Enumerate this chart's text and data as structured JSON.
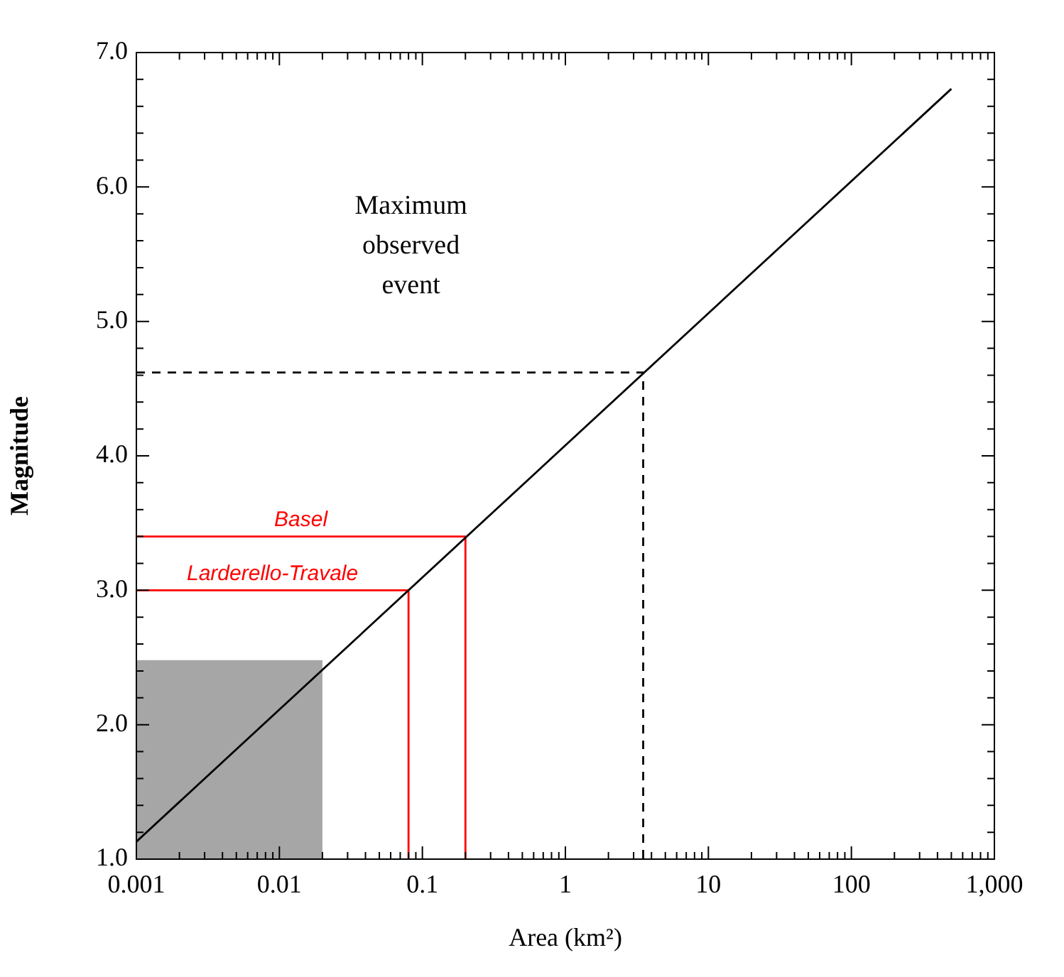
{
  "chart_data": {
    "type": "line",
    "xlabel": "Area (km²)",
    "ylabel": "Magnitude",
    "log": "x",
    "grid": false,
    "legend": false,
    "xlim": [
      0.001,
      1000
    ],
    "ylim": [
      1,
      7
    ],
    "xticks": [
      0.001,
      {
        "value": 0.002,
        "label": null
      },
      {
        "value": 0.003,
        "label": null
      },
      {
        "value": 0.004,
        "label": null
      },
      {
        "value": 0.005,
        "label": null
      },
      {
        "value": 0.006,
        "label": null
      },
      {
        "value": 0.007,
        "label": null
      },
      {
        "value": 0.008,
        "label": null
      },
      {
        "value": 0.009,
        "label": null
      },
      0.01,
      {
        "value": 0.02,
        "label": null
      },
      {
        "value": 0.03,
        "label": null
      },
      {
        "value": 0.04,
        "label": null
      },
      {
        "value": 0.05,
        "label": null
      },
      {
        "value": 0.06,
        "label": null
      },
      {
        "value": 0.07,
        "label": null
      },
      {
        "value": 0.08,
        "label": null
      },
      {
        "value": 0.09,
        "label": null
      },
      0.1,
      {
        "value": 0.2,
        "label": null
      },
      {
        "value": 0.3,
        "label": null
      },
      {
        "value": 0.4,
        "label": null
      },
      {
        "value": 0.5,
        "label": null
      },
      {
        "value": 0.6,
        "label": null
      },
      {
        "value": 0.7,
        "label": null
      },
      {
        "value": 0.8,
        "label": null
      },
      {
        "value": 0.9,
        "label": null
      },
      1,
      {
        "value": 2,
        "label": null
      },
      {
        "value": 3,
        "label": null
      },
      {
        "value": 4,
        "label": null
      },
      {
        "value": 5,
        "label": null
      },
      {
        "value": 6,
        "label": null
      },
      {
        "value": 7,
        "label": null
      },
      {
        "value": 8,
        "label": null
      },
      {
        "value": 9,
        "label": null
      },
      10,
      {
        "value": 20,
        "label": null
      },
      {
        "value": 30,
        "label": null
      },
      {
        "value": 40,
        "label": null
      },
      {
        "value": 50,
        "label": null
      },
      {
        "value": 60,
        "label": null
      },
      {
        "value": 70,
        "label": null
      },
      {
        "value": 80,
        "label": null
      },
      {
        "value": 90,
        "label": null
      },
      100,
      {
        "value": 200,
        "label": null
      },
      {
        "value": 300,
        "label": null
      },
      {
        "value": 400,
        "label": null
      },
      {
        "value": 500,
        "label": null
      },
      {
        "value": 600,
        "label": null
      },
      {
        "value": 700,
        "label": null
      },
      {
        "value": 800,
        "label": null
      },
      {
        "value": 900,
        "label": null
      },
      {
        "value": 1000,
        "label": "1,000"
      }
    ],
    "yticks": [
      {
        "value": 1,
        "label": "1.0"
      },
      {
        "value": 1.2,
        "label": null
      },
      {
        "value": 1.4,
        "label": null
      },
      {
        "value": 1.6,
        "label": null
      },
      {
        "value": 1.8,
        "label": null
      },
      {
        "value": 2,
        "label": "2.0"
      },
      {
        "value": 2.2,
        "label": null
      },
      {
        "value": 2.4,
        "label": null
      },
      {
        "value": 2.6,
        "label": null
      },
      {
        "value": 2.8,
        "label": null
      },
      {
        "value": 3,
        "label": "3.0"
      },
      {
        "value": 3.2,
        "label": null
      },
      {
        "value": 3.4,
        "label": null
      },
      {
        "value": 3.6,
        "label": null
      },
      {
        "value": 3.8,
        "label": null
      },
      {
        "value": 4,
        "label": "4.0"
      },
      {
        "value": 4.2,
        "label": null
      },
      {
        "value": 4.4,
        "label": null
      },
      {
        "value": 4.6,
        "label": null
      },
      {
        "value": 4.8,
        "label": null
      },
      {
        "value": 5,
        "label": "5.0"
      },
      {
        "value": 5.2,
        "label": null
      },
      {
        "value": 5.4,
        "label": null
      },
      {
        "value": 5.6,
        "label": null
      },
      {
        "value": 5.8,
        "label": null
      },
      {
        "value": 6,
        "label": "6.0"
      },
      {
        "value": 6.2,
        "label": null
      },
      {
        "value": 6.4,
        "label": null
      },
      {
        "value": 6.6,
        "label": null
      },
      {
        "value": 6.8,
        "label": null
      },
      {
        "value": 7,
        "label": "7.0"
      }
    ],
    "annotations": [
      "Maximum observed event"
    ],
    "series": [
      {
        "type": "area",
        "color": "#a6a6a6",
        "x": [
          0.001,
          0.02
        ],
        "values": [
          2.48,
          2.48
        ]
      },
      {
        "color": "#ff0000",
        "name": "Basel",
        "x": [
          0.001,
          0.2,
          0.2
        ],
        "values": [
          3.4,
          3.4,
          1
        ]
      },
      {
        "color": "#ff0000",
        "name": "Larderello-Travale",
        "x": [
          0.001,
          0.08,
          0.08
        ],
        "values": [
          3,
          3,
          1
        ]
      },
      {
        "color": "#000000",
        "line_style": "dashed",
        "x": [
          0.001,
          3.5,
          3.5
        ],
        "values": [
          4.62,
          4.62,
          1
        ]
      },
      {
        "color": "#000000",
        "x": [
          0.001,
          500
        ],
        "values": [
          1.13,
          6.73
        ]
      }
    ]
  }
}
